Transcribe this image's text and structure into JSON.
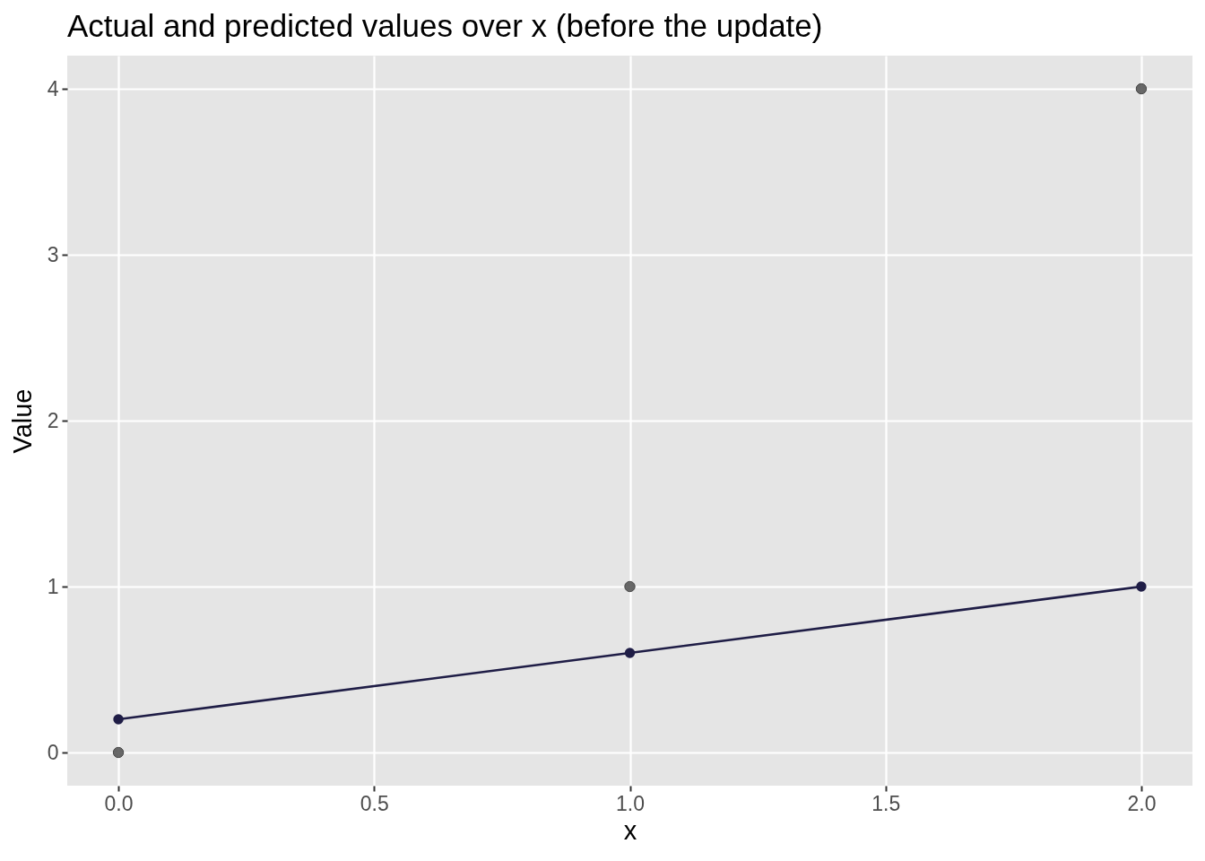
{
  "chart_data": {
    "type": "line",
    "title": "Actual and predicted values over x (before the update)",
    "xlabel": "x",
    "ylabel": "Value",
    "x": [
      0,
      1,
      2
    ],
    "series": [
      {
        "type": "scatter",
        "color": "#595959",
        "values": [
          0,
          1,
          4
        ]
      },
      {
        "color": "#1f1d46",
        "values": [
          0.2,
          0.6,
          1.0
        ]
      }
    ],
    "xlim": [
      -0.1,
      2.1
    ],
    "ylim": [
      -0.2,
      4.2
    ],
    "xticks": [
      {
        "value": 0,
        "label": "0.0"
      },
      {
        "value": 0.5,
        "label": "0.5"
      },
      {
        "value": 1,
        "label": "1.0"
      },
      {
        "value": 1.5,
        "label": "1.5"
      },
      {
        "value": 2,
        "label": "2.0"
      }
    ],
    "yticks": [
      0,
      1,
      2,
      3,
      4
    ],
    "grid": true,
    "marker": "circle"
  }
}
